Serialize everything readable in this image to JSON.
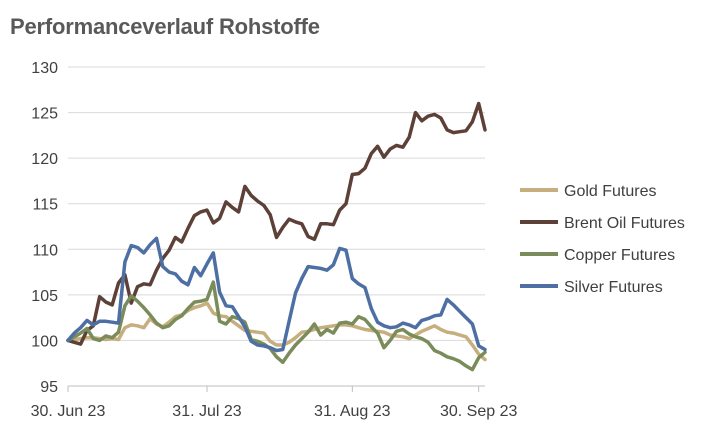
{
  "chart_data": {
    "type": "line",
    "title": "Performanceverlauf Rohstoffe",
    "xlabel": "",
    "ylabel": "",
    "ylim": [
      95,
      130
    ],
    "yticks": [
      95,
      100,
      105,
      110,
      115,
      120,
      125,
      130
    ],
    "xtick_labels": [
      {
        "label": "30. Jun 23",
        "index": 0
      },
      {
        "label": "31. Jul 23",
        "index": 22
      },
      {
        "label": "31. Aug 23",
        "index": 45
      },
      {
        "label": "30. Sep 23",
        "index": 65
      }
    ],
    "x_count": 67,
    "grid": "horizontal",
    "legend": "right",
    "series": [
      {
        "name": "Gold Futures",
        "color": "#C6AE7E",
        "values": [
          100,
          100.1,
          100.2,
          100.3,
          100.3,
          100.2,
          100.1,
          100.2,
          100.1,
          101.4,
          101.7,
          101.6,
          101.4,
          102.4,
          101.8,
          101.5,
          102.0,
          102.6,
          102.8,
          103.3,
          103.6,
          103.8,
          104.1,
          103.0,
          102.7,
          102.6,
          102.1,
          101.6,
          101.1,
          101.0,
          100.9,
          100.8,
          99.9,
          99.5,
          99.5,
          99.8,
          100.3,
          100.9,
          101.0,
          101.2,
          101.4,
          101.5,
          101.6,
          101.7,
          101.7,
          101.6,
          101.4,
          101.2,
          101.1,
          101.0,
          100.9,
          100.6,
          100.5,
          100.4,
          100.2,
          100.6,
          101.0,
          101.3,
          101.6,
          101.2,
          100.9,
          100.8,
          100.6,
          100.4,
          99.5,
          98.5,
          97.9
        ]
      },
      {
        "name": "Brent Oil Futures",
        "color": "#5D4037",
        "values": [
          100,
          99.8,
          99.6,
          101.1,
          101.6,
          104.8,
          104.2,
          103.9,
          106.3,
          107.2,
          104.1,
          105.9,
          106.2,
          106.1,
          107.7,
          109.0,
          109.9,
          111.3,
          110.8,
          112.3,
          113.7,
          114.1,
          114.3,
          112.9,
          113.4,
          115.2,
          114.6,
          114.1,
          116.9,
          115.9,
          115.3,
          114.8,
          113.8,
          111.3,
          112.4,
          113.3,
          113.0,
          112.8,
          111.4,
          111.1,
          112.8,
          112.8,
          112.7,
          114.3,
          115.0,
          118.2,
          118.3,
          118.9,
          120.5,
          121.3,
          120.1,
          121.0,
          121.4,
          121.2,
          122.3,
          125.0,
          124.1,
          124.6,
          124.8,
          124.4,
          123.1,
          122.8,
          122.9,
          123.0,
          124.0,
          126.0,
          123.1
        ]
      },
      {
        "name": "Copper Futures",
        "color": "#7A8C5A",
        "values": [
          100,
          100.4,
          100.8,
          101.3,
          100.2,
          100.0,
          100.5,
          100.3,
          100.9,
          103.8,
          104.9,
          104.3,
          103.6,
          102.8,
          101.9,
          101.4,
          101.6,
          102.3,
          102.7,
          103.5,
          104.2,
          104.3,
          104.5,
          106.4,
          102.1,
          101.8,
          102.6,
          102.4,
          102.0,
          100.1,
          99.9,
          99.6,
          99.1,
          98.2,
          97.6,
          98.6,
          99.5,
          100.2,
          100.9,
          101.8,
          100.6,
          101.2,
          100.8,
          101.9,
          102.0,
          101.8,
          102.6,
          102.3,
          101.5,
          100.8,
          99.2,
          100.0,
          101.0,
          101.2,
          100.7,
          100.4,
          100.2,
          99.8,
          98.9,
          98.6,
          98.2,
          98.0,
          97.7,
          97.2,
          96.8,
          98.1,
          98.7
        ]
      },
      {
        "name": "Silver Futures",
        "color": "#4E6FA3",
        "values": [
          100,
          100.8,
          101.4,
          102.2,
          101.7,
          102.1,
          102.1,
          102.0,
          101.9,
          108.6,
          110.4,
          110.2,
          109.6,
          110.5,
          111.2,
          108.1,
          107.5,
          107.3,
          106.5,
          106.1,
          108.0,
          107.1,
          108.4,
          109.6,
          105.3,
          103.8,
          103.7,
          102.6,
          101.5,
          99.9,
          99.5,
          99.4,
          99.2,
          98.9,
          99.0,
          102.1,
          105.2,
          106.8,
          108.1,
          108.0,
          107.9,
          107.7,
          108.3,
          110.1,
          109.9,
          106.8,
          106.2,
          105.8,
          103.5,
          102.0,
          101.6,
          101.4,
          101.5,
          101.9,
          101.7,
          101.4,
          102.2,
          102.4,
          102.7,
          102.8,
          104.5,
          103.9,
          103.2,
          102.5,
          101.8,
          99.4,
          99.0
        ]
      }
    ]
  }
}
